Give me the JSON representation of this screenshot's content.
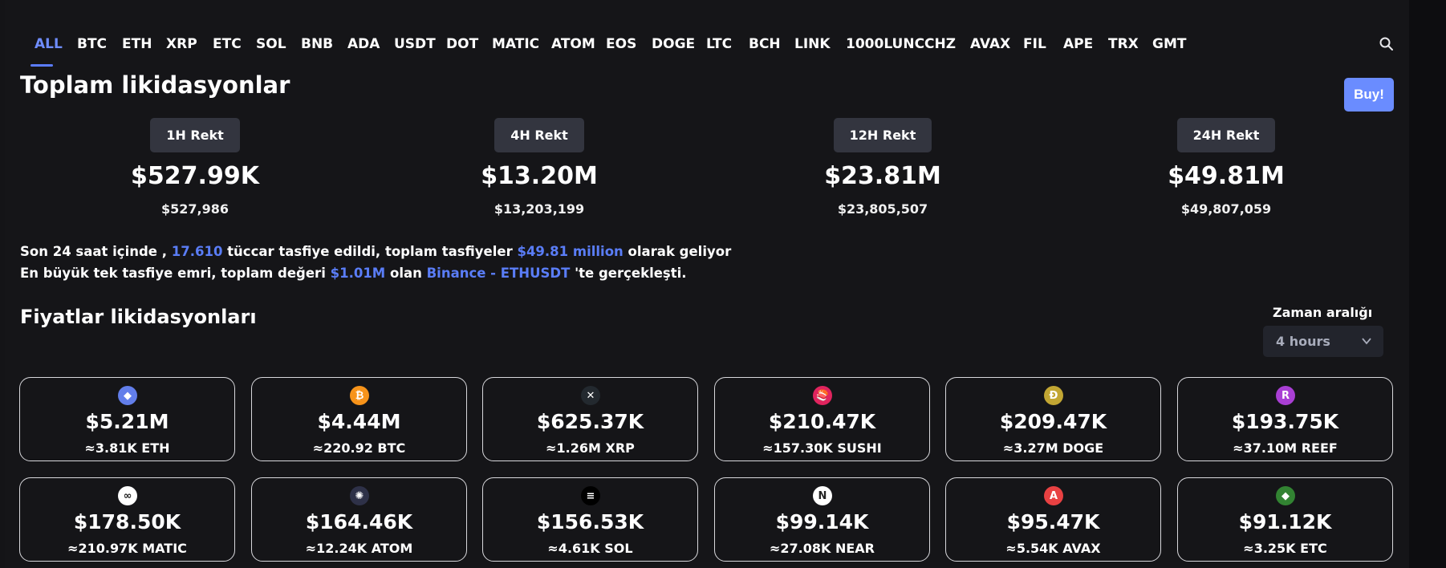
{
  "tabs": [
    "ALL",
    "BTC",
    "ETH",
    "XRP",
    "ETC",
    "SOL",
    "BNB",
    "ADA",
    "USDT",
    "DOT",
    "MATIC",
    "ATOM",
    "EOS",
    "DOGE",
    "LTC",
    "BCH",
    "LINK",
    "1000LUNC",
    "CHZ",
    "AVAX",
    "FIL",
    "APE",
    "TRX",
    "GMT"
  ],
  "active_tab": "ALL",
  "title": "Toplam likidasyonlar",
  "buy_label": "Buy!",
  "rekt": [
    {
      "badge": "1H Rekt",
      "value": "$527.99K",
      "exact": "$527,986"
    },
    {
      "badge": "4H Rekt",
      "value": "$13.20M",
      "exact": "$13,203,199"
    },
    {
      "badge": "12H Rekt",
      "value": "$23.81M",
      "exact": "$23,805,507"
    },
    {
      "badge": "24H Rekt",
      "value": "$49.81M",
      "exact": "$49,807,059"
    }
  ],
  "summary": {
    "l1a": "Son 24 saat içinde ,",
    "l1b": "17.610",
    "l1c": "tüccar tasfiye edildi, toplam tasfiyeler",
    "l1d": "$49.81 million",
    "l1e": "olarak geliyor",
    "l2a": "En büyük tek tasfiye emri, toplam değeri",
    "l2b": "$1.01M",
    "l2c": "olan",
    "l2d": "Binance - ETHUSDT",
    "l2e": "'te gerçekleşti."
  },
  "subtitle": "Fiyatlar likidasyonları",
  "range": {
    "label": "Zaman aralığı",
    "value": "4 hours"
  },
  "cards": [
    {
      "icon": "ethereum-icon",
      "color": "#627eea",
      "glyph": "◆",
      "value": "$5.21M",
      "sub": "≈3.81K ETH"
    },
    {
      "icon": "bitcoin-icon",
      "color": "#f7931a",
      "glyph": "₿",
      "value": "$4.44M",
      "sub": "≈220.92 BTC"
    },
    {
      "icon": "xrp-icon",
      "color": "#23292f",
      "glyph": "✕",
      "value": "$625.37K",
      "sub": "≈1.26M XRP"
    },
    {
      "icon": "sushi-icon",
      "color": "#e0245e",
      "glyph": "🍣",
      "value": "$210.47K",
      "sub": "≈157.30K SUSHI"
    },
    {
      "icon": "dogecoin-icon",
      "color": "#c2a633",
      "glyph": "Ð",
      "value": "$209.47K",
      "sub": "≈3.27M DOGE"
    },
    {
      "icon": "reef-icon",
      "color": "#a93fd4",
      "glyph": "R",
      "value": "$193.75K",
      "sub": "≈37.10M REEF"
    },
    {
      "icon": "polygon-icon",
      "color": "#ffffff",
      "glyph": "∞",
      "value": "$178.50K",
      "sub": "≈210.97K MATIC"
    },
    {
      "icon": "cosmos-icon",
      "color": "#2e3148",
      "glyph": "✺",
      "value": "$164.46K",
      "sub": "≈12.24K ATOM"
    },
    {
      "icon": "solana-icon",
      "color": "#000000",
      "glyph": "≡",
      "value": "$156.53K",
      "sub": "≈4.61K SOL"
    },
    {
      "icon": "near-icon",
      "color": "#ffffff",
      "glyph": "N",
      "value": "$99.14K",
      "sub": "≈27.08K NEAR"
    },
    {
      "icon": "avalanche-icon",
      "color": "#e84142",
      "glyph": "A",
      "value": "$95.47K",
      "sub": "≈5.54K AVAX"
    },
    {
      "icon": "ethereum-classic-icon",
      "color": "#328332",
      "glyph": "◆",
      "value": "$91.12K",
      "sub": "≈3.25K ETC"
    }
  ]
}
